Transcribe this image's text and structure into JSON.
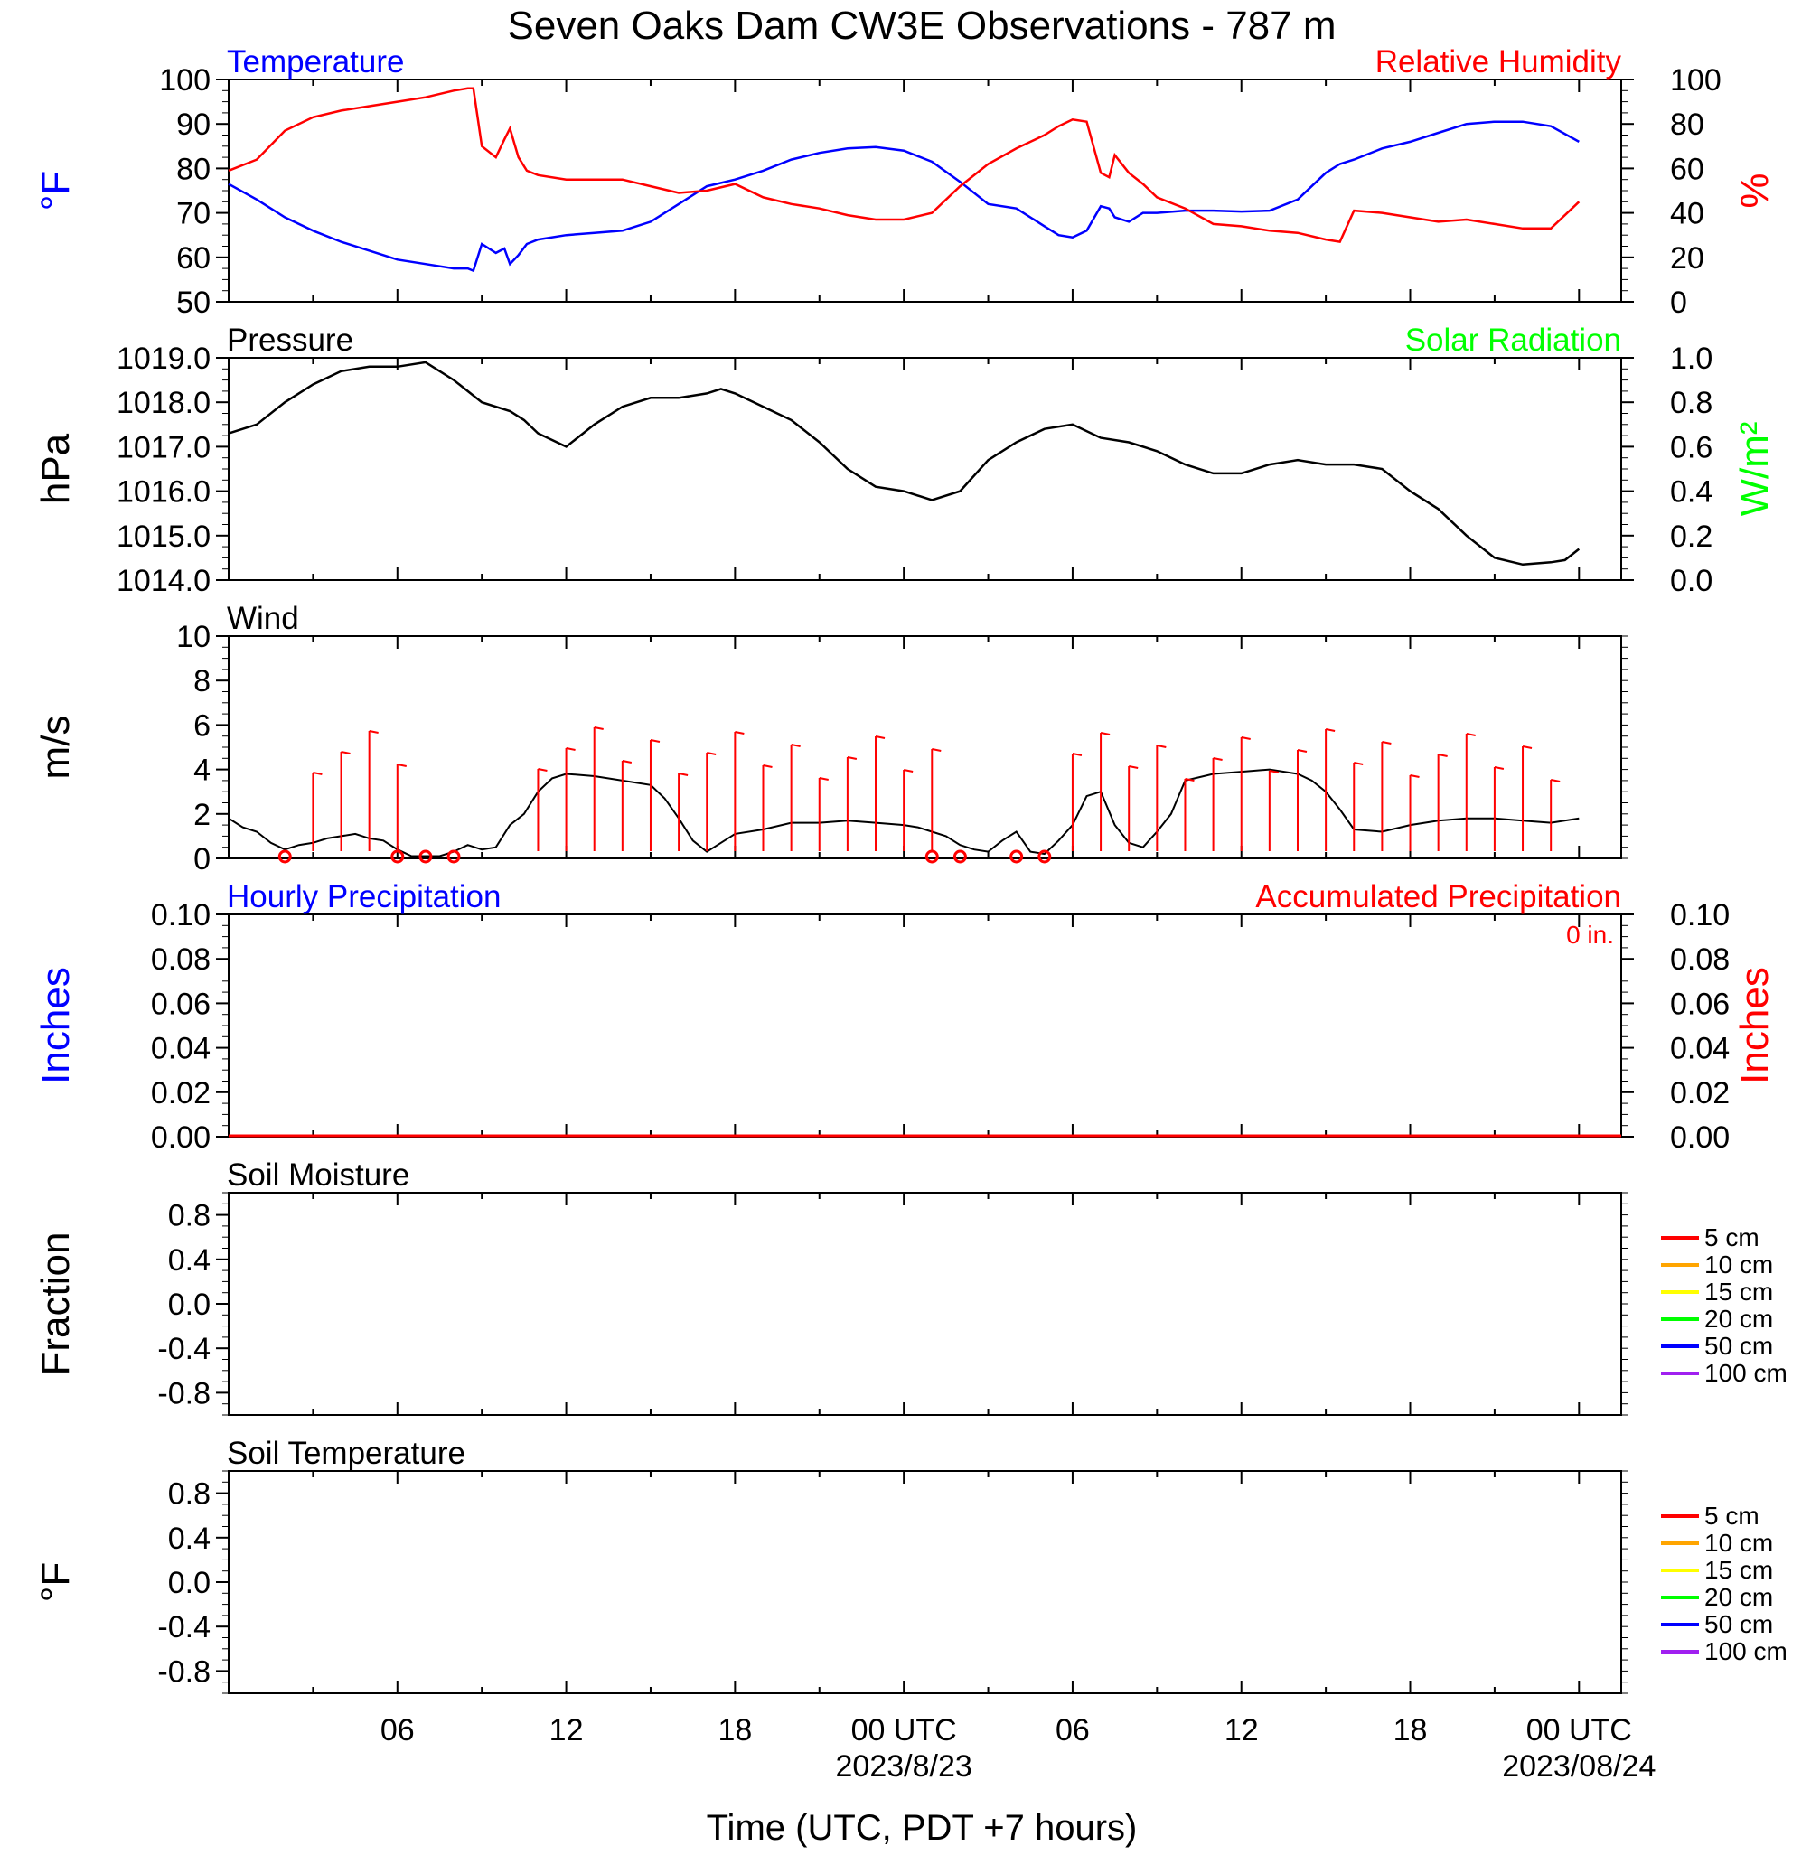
{
  "title": "Seven Oaks Dam CW3E Observations - 787 m",
  "xlabel": "Time (UTC, PDT +7 hours)",
  "x_ticks": [
    "06",
    "12",
    "18",
    "00 UTC",
    "06",
    "12",
    "18",
    "00 UTC"
  ],
  "x_date_labels": [
    "2023/8/23",
    "2023/08/24"
  ],
  "colors": {
    "temperature": "#0000ff",
    "humidity": "#ff0000",
    "pressure": "#000000",
    "solar": "#00ff00",
    "wind": "#000000",
    "barbs": "#ff0000",
    "accum": "#ff0000"
  },
  "chart_data": [
    {
      "type": "line",
      "panel": "temperature-humidity",
      "left_title": "Temperature",
      "right_title": "Relative Humidity",
      "left_unit": "°F",
      "right_unit": "%",
      "left_ticks": [
        "100",
        "90",
        "80",
        "70",
        "60",
        "50"
      ],
      "right_ticks": [
        "100",
        "80",
        "60",
        "40",
        "20",
        "0"
      ],
      "left_ylim": [
        50,
        100
      ],
      "right_ylim": [
        0,
        100
      ],
      "x_hours": [
        0,
        1,
        2,
        3,
        4,
        5,
        6,
        7,
        8,
        8.5,
        8.7,
        9,
        9.5,
        9.8,
        10,
        10.3,
        10.6,
        11,
        12,
        13,
        14,
        15,
        16,
        17,
        18,
        19,
        20,
        21,
        22,
        23,
        24,
        25,
        26,
        27,
        28,
        29,
        29.5,
        30,
        30.5,
        31,
        31.3,
        31.5,
        32,
        32.5,
        33,
        34,
        35,
        36,
        37,
        38,
        39,
        39.5,
        40,
        41,
        42,
        43,
        44,
        45,
        46,
        47,
        48
      ],
      "series": [
        {
          "name": "Temperature",
          "values": [
            76.5,
            73,
            69,
            66,
            63.5,
            61.5,
            59.5,
            58.5,
            57.5,
            57.5,
            57,
            63,
            61,
            62,
            58.5,
            60.5,
            63,
            64,
            65,
            65.5,
            66,
            68,
            72,
            76,
            77.5,
            79.5,
            82,
            83.5,
            84.5,
            84.8,
            84,
            81.5,
            77,
            72,
            71,
            67,
            65,
            64.5,
            66,
            71.5,
            71,
            69,
            68,
            70,
            70,
            70.5,
            70.5,
            70.3,
            70.5,
            73,
            79,
            81,
            82,
            84.5,
            86,
            88,
            90,
            90.5,
            90.5,
            89.5,
            86
          ]
        },
        {
          "name": "Relative Humidity",
          "values": [
            59,
            64,
            77,
            83,
            86,
            88,
            90,
            92,
            95,
            96,
            96,
            70,
            65,
            73,
            78,
            65,
            59,
            57,
            55,
            55,
            55,
            52,
            49,
            50,
            53,
            47,
            44,
            42,
            39,
            37,
            37,
            40,
            52,
            62,
            69,
            75,
            79,
            82,
            81,
            58,
            56,
            66,
            58,
            53,
            47,
            42,
            35,
            34,
            32,
            31,
            28,
            27,
            41,
            40,
            38,
            36,
            37,
            35,
            33,
            33,
            45
          ]
        }
      ]
    },
    {
      "type": "line",
      "panel": "pressure",
      "left_title": "Pressure",
      "right_title": "Solar Radiation",
      "left_unit": "hPa",
      "right_unit": "W/m²",
      "left_ticks": [
        "1019.0",
        "1018.0",
        "1017.0",
        "1016.0",
        "1015.0",
        "1014.0"
      ],
      "right_ticks": [
        "1.0",
        "0.8",
        "0.6",
        "0.4",
        "0.2",
        "0.0"
      ],
      "left_ylim": [
        1014.0,
        1019.0
      ],
      "right_ylim": [
        0.0,
        1.0
      ],
      "x_hours": [
        0,
        1,
        2,
        3,
        4,
        5,
        6,
        7,
        8,
        9,
        10,
        10.5,
        11,
        12,
        13,
        14,
        15,
        16,
        17,
        17.5,
        18,
        19,
        20,
        21,
        22,
        23,
        24,
        25,
        26,
        27,
        28,
        29,
        30,
        31,
        32,
        33,
        34,
        35,
        36,
        37,
        38,
        39,
        40,
        41,
        42,
        43,
        44,
        45,
        46,
        47,
        47.5,
        48
      ],
      "series": [
        {
          "name": "Pressure",
          "values": [
            1017.3,
            1017.5,
            1018.0,
            1018.4,
            1018.7,
            1018.8,
            1018.8,
            1018.9,
            1018.5,
            1018.0,
            1017.8,
            1017.6,
            1017.3,
            1017.0,
            1017.5,
            1017.9,
            1018.1,
            1018.1,
            1018.2,
            1018.3,
            1018.2,
            1017.9,
            1017.6,
            1017.1,
            1016.5,
            1016.1,
            1016.0,
            1015.8,
            1016.0,
            1016.7,
            1017.1,
            1017.4,
            1017.5,
            1017.2,
            1017.1,
            1016.9,
            1016.6,
            1016.4,
            1016.4,
            1016.6,
            1016.7,
            1016.6,
            1016.6,
            1016.5,
            1016.0,
            1015.6,
            1015.0,
            1014.5,
            1014.35,
            1014.4,
            1014.45,
            1014.7
          ]
        }
      ]
    },
    {
      "type": "line",
      "panel": "wind",
      "left_title": "Wind",
      "left_unit": "m/s",
      "left_ticks": [
        "10",
        "8",
        "6",
        "4",
        "2",
        "0"
      ],
      "ylim": [
        0,
        10
      ],
      "x_hours": [
        0,
        0.5,
        1,
        1.5,
        2,
        2.5,
        3,
        3.5,
        4,
        4.5,
        5,
        5.5,
        6,
        6.5,
        7,
        7.5,
        8,
        8.5,
        9,
        9.5,
        10,
        10.5,
        11,
        11.5,
        12,
        13,
        14,
        15,
        15.5,
        16,
        16.5,
        17,
        17.5,
        18,
        19,
        20,
        21,
        22,
        23,
        24,
        24.5,
        25,
        25.5,
        26,
        26.5,
        27,
        27.5,
        28,
        28.5,
        29,
        29.5,
        30,
        30.5,
        31,
        31.5,
        32,
        32.5,
        33,
        33.5,
        34,
        35,
        36,
        37,
        38,
        38.5,
        39,
        39.5,
        40,
        41,
        42,
        43,
        44,
        45,
        46,
        47,
        48
      ],
      "series": [
        {
          "name": "Wind Speed",
          "values": [
            1.8,
            1.4,
            1.2,
            0.7,
            0.4,
            0.6,
            0.7,
            0.9,
            1.0,
            1.1,
            0.9,
            0.8,
            0.4,
            0.1,
            0.1,
            0.1,
            0.3,
            0.6,
            0.4,
            0.5,
            1.5,
            2.0,
            3.0,
            3.6,
            3.8,
            3.7,
            3.5,
            3.3,
            2.7,
            1.8,
            0.8,
            0.3,
            0.7,
            1.1,
            1.3,
            1.6,
            1.6,
            1.7,
            1.6,
            1.5,
            1.4,
            1.2,
            1.0,
            0.6,
            0.4,
            0.3,
            0.8,
            1.2,
            0.3,
            0.2,
            0.8,
            1.5,
            2.8,
            3.0,
            1.5,
            0.7,
            0.5,
            1.2,
            2.0,
            3.5,
            3.8,
            3.9,
            4.0,
            3.8,
            3.5,
            3.0,
            2.2,
            1.3,
            1.2,
            1.5,
            1.7,
            1.8,
            1.8,
            1.7,
            1.6,
            1.8
          ]
        }
      ],
      "barbs_hours": [
        3,
        4,
        5,
        6,
        11,
        12,
        13,
        14,
        15,
        16,
        17,
        18,
        19,
        20,
        21,
        22,
        23,
        24,
        25,
        30,
        31,
        32,
        33,
        34,
        35,
        36,
        37,
        38,
        39,
        40,
        41,
        42,
        43,
        44,
        45,
        46,
        47
      ],
      "calm_hours": [
        2,
        6,
        7,
        8,
        25,
        26,
        28,
        29
      ]
    },
    {
      "type": "line",
      "panel": "precipitation",
      "left_title": "Hourly Precipitation",
      "right_title": "Accumulated Precipitation",
      "annotation": "0 in.",
      "left_unit": "Inches",
      "right_unit": "Inches",
      "left_ticks": [
        "0.10",
        "0.08",
        "0.06",
        "0.04",
        "0.02",
        "0.00"
      ],
      "right_ticks": [
        "0.10",
        "0.08",
        "0.06",
        "0.04",
        "0.02",
        "0.00"
      ],
      "ylim": [
        0.0,
        0.1
      ],
      "x_hours": [
        0,
        48
      ],
      "series": [
        {
          "name": "Accumulated Precipitation",
          "values": [
            0.0,
            0.0
          ]
        }
      ]
    },
    {
      "type": "line",
      "panel": "soil-moisture",
      "left_title": "Soil Moisture",
      "left_unit": "Fraction",
      "left_ticks": [
        "0.8",
        "0.4",
        "0.0",
        "-0.4",
        "-0.8"
      ],
      "ylim": [
        -1.0,
        1.0
      ],
      "legend": [
        {
          "label": "5 cm",
          "color": "#ff0000"
        },
        {
          "label": "10 cm",
          "color": "#ffa500"
        },
        {
          "label": "15 cm",
          "color": "#ffff00"
        },
        {
          "label": "20 cm",
          "color": "#00ff00"
        },
        {
          "label": "50 cm",
          "color": "#0000ff"
        },
        {
          "label": "100 cm",
          "color": "#a020f0"
        }
      ],
      "series": []
    },
    {
      "type": "line",
      "panel": "soil-temperature",
      "left_title": "Soil Temperature",
      "left_unit": "°F",
      "left_ticks": [
        "0.8",
        "0.4",
        "0.0",
        "-0.4",
        "-0.8"
      ],
      "ylim": [
        -1.0,
        1.0
      ],
      "legend": [
        {
          "label": "5 cm",
          "color": "#ff0000"
        },
        {
          "label": "10 cm",
          "color": "#ffa500"
        },
        {
          "label": "15 cm",
          "color": "#ffff00"
        },
        {
          "label": "20 cm",
          "color": "#00ff00"
        },
        {
          "label": "50 cm",
          "color": "#0000ff"
        },
        {
          "label": "100 cm",
          "color": "#a020f0"
        }
      ],
      "series": []
    }
  ]
}
